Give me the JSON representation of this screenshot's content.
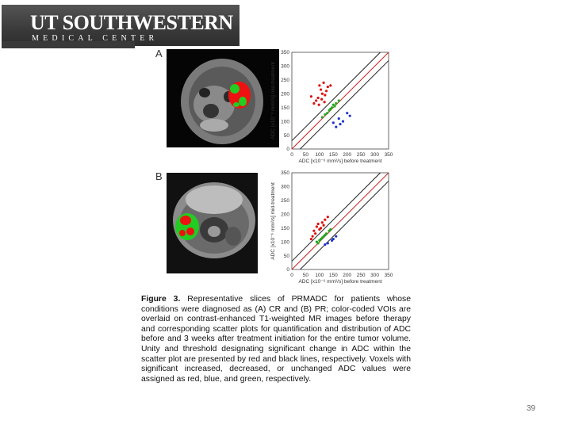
{
  "header": {
    "logo_line1": "UT SOUTHWESTERN",
    "logo_line2": "MEDICAL CENTER"
  },
  "panels": [
    {
      "label": "A",
      "plot": {
        "xlabel": "ADC [x10⁻⁶ mm²/s] before treatment",
        "ylabel": "ADC [x10⁻⁶ mm²/s] mid-treatment"
      }
    },
    {
      "label": "B",
      "plot": {
        "xlabel": "ADC [x10⁻⁶ mm²/s] before treatment",
        "ylabel": "ADC [x10⁻⁶ mm²/s] mid-treatment"
      }
    }
  ],
  "axis_ticks": [
    "0",
    "50",
    "100",
    "150",
    "200",
    "250",
    "300",
    "350"
  ],
  "caption": {
    "label": "Figure 3.",
    "text": "Representative slices of PRMADC for patients whose conditions were diagnosed as (A) CR and (B) PR; color-coded VOIs are overlaid on contrast-enhanced T1-weighted MR images before therapy and corresponding scatter plots for quantification and distribution of ADC before and 3 weeks after treatment initiation for the entire tumor volume. Unity and threshold designating significant change in ADC within the scatter plot are presented by red and black lines, respectively. Voxels with significant increased, decreased, or unchanged ADC values were assigned as red, blue, and green, respectively."
  },
  "page_number": "39",
  "chart_data": [
    {
      "type": "scatter",
      "title": "",
      "xlabel": "ADC [x10⁻⁶ mm²/s] before treatment",
      "ylabel": "ADC [x10⁻⁶ mm²/s] mid-treatment",
      "xlim": [
        0,
        350
      ],
      "ylim": [
        0,
        350
      ],
      "series": [
        {
          "color": "#dd1111",
          "points": [
            [
              95,
              185
            ],
            [
              110,
              200
            ],
            [
              105,
              215
            ],
            [
              120,
              195
            ],
            [
              88,
              175
            ],
            [
              100,
              230
            ],
            [
              125,
              210
            ],
            [
              80,
              165
            ],
            [
              115,
              240
            ],
            [
              130,
              225
            ],
            [
              98,
              160
            ],
            [
              140,
              230
            ],
            [
              70,
              190
            ],
            [
              108,
              180
            ],
            [
              118,
              170
            ]
          ]
        },
        {
          "color": "#22aa22",
          "points": [
            [
              120,
              125
            ],
            [
              135,
              140
            ],
            [
              150,
              160
            ],
            [
              140,
              145
            ],
            [
              160,
              165
            ],
            [
              128,
              130
            ],
            [
              145,
              150
            ],
            [
              170,
              175
            ],
            [
              110,
              115
            ],
            [
              155,
              155
            ]
          ]
        },
        {
          "color": "#2233cc",
          "points": [
            [
              150,
              95
            ],
            [
              170,
              110
            ],
            [
              185,
              100
            ],
            [
              160,
              80
            ],
            [
              200,
              130
            ],
            [
              175,
              90
            ],
            [
              210,
              120
            ]
          ]
        }
      ],
      "lines": [
        {
          "name": "unity",
          "color": "#cc2222",
          "intercept": 0
        },
        {
          "name": "threshold-upper",
          "color": "#222222",
          "intercept": 30
        },
        {
          "name": "threshold-lower",
          "color": "#222222",
          "intercept": -30
        }
      ]
    },
    {
      "type": "scatter",
      "title": "",
      "xlabel": "ADC [x10⁻⁶ mm²/s] before treatment",
      "ylabel": "ADC [x10⁻⁶ mm²/s] mid-treatment",
      "xlim": [
        0,
        350
      ],
      "ylim": [
        0,
        350
      ],
      "series": [
        {
          "color": "#dd1111",
          "points": [
            [
              80,
              140
            ],
            [
              90,
              155
            ],
            [
              100,
              145
            ],
            [
              85,
              130
            ],
            [
              110,
              170
            ],
            [
              95,
              165
            ],
            [
              120,
              180
            ],
            [
              75,
              120
            ],
            [
              105,
              150
            ],
            [
              130,
              190
            ],
            [
              70,
              110
            ],
            [
              115,
              160
            ]
          ]
        },
        {
          "color": "#22aa22",
          "points": [
            [
              90,
              100
            ],
            [
              105,
              110
            ],
            [
              120,
              125
            ],
            [
              110,
              115
            ],
            [
              135,
              140
            ],
            [
              100,
              105
            ],
            [
              125,
              130
            ],
            [
              140,
              145
            ],
            [
              115,
              120
            ],
            [
              95,
              95
            ]
          ]
        },
        {
          "color": "#2233cc",
          "points": [
            [
              130,
              95
            ],
            [
              145,
              105
            ],
            [
              160,
              120
            ],
            [
              150,
              110
            ],
            [
              120,
              90
            ]
          ]
        }
      ],
      "lines": [
        {
          "name": "unity",
          "color": "#cc2222",
          "intercept": 0
        },
        {
          "name": "threshold-upper",
          "color": "#222222",
          "intercept": 30
        },
        {
          "name": "threshold-lower",
          "color": "#222222",
          "intercept": -30
        }
      ]
    }
  ]
}
